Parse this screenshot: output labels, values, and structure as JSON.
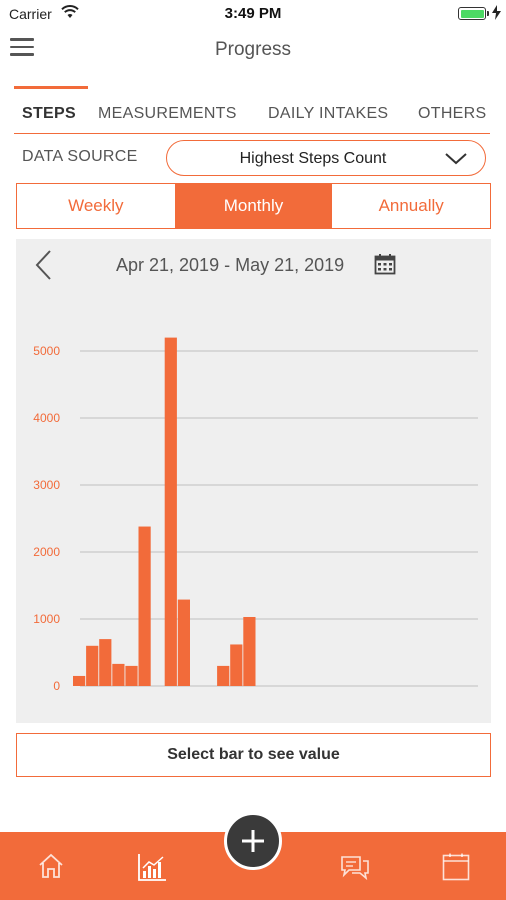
{
  "status_bar": {
    "carrier": "Carrier",
    "time": "3:49 PM",
    "battery_level": 1.0
  },
  "header": {
    "title": "Progress",
    "menu_icon": "hamburger-menu-icon"
  },
  "tabs": [
    {
      "label": "STEPS",
      "active": true
    },
    {
      "label": "MEASUREMENTS",
      "active": false
    },
    {
      "label": "DAILY INTAKES",
      "active": false
    },
    {
      "label": "OTHERS",
      "active": false
    }
  ],
  "data_source": {
    "label": "DATA SOURCE",
    "selected": "Highest Steps Count"
  },
  "period": {
    "options": [
      "Weekly",
      "Monthly",
      "Annually"
    ],
    "selected": "Monthly"
  },
  "chart": {
    "date_range": "Apr 21, 2019 - May 21, 2019",
    "prev_icon": "chevron-left-icon",
    "calendar_icon": "calendar-icon"
  },
  "chart_data": {
    "type": "bar",
    "ylim": [
      0,
      5000
    ],
    "yticks": [
      0,
      1000,
      2000,
      3000,
      4000,
      5000
    ],
    "values": [
      150,
      600,
      700,
      330,
      300,
      2380,
      0,
      5200,
      1290,
      0,
      0,
      300,
      620,
      1030
    ],
    "color": "#f26b3a",
    "grid": true
  },
  "select_hint": "Select bar to see value",
  "bottom_nav": {
    "items": [
      "home-icon",
      "chart-icon",
      "chat-icon",
      "calendar-icon"
    ],
    "fab_icon": "plus-icon"
  },
  "colors": {
    "accent": "#f26b3a",
    "panel": "#efefef"
  }
}
